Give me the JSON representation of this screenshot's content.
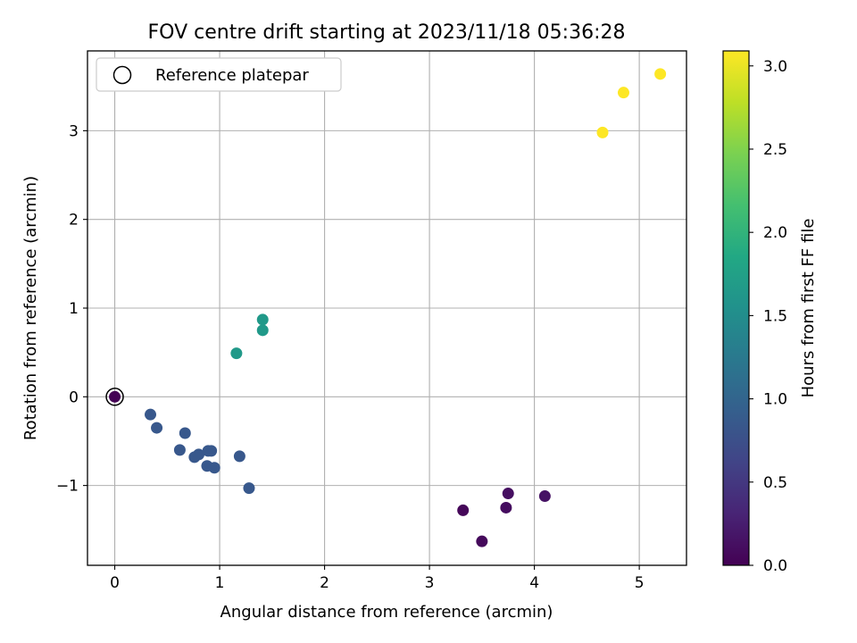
{
  "chart_data": {
    "type": "scatter",
    "title": "FOV centre drift starting at 2023/11/18 05:36:28",
    "xlabel": "Angular distance from reference (arcmin)",
    "ylabel": "Rotation from reference (arcmin)",
    "xlim": [
      -0.26,
      5.45
    ],
    "ylim": [
      -1.9,
      3.9
    ],
    "xticks": [
      0,
      1,
      2,
      3,
      4,
      5
    ],
    "yticks": [
      -1,
      0,
      1,
      2,
      3
    ],
    "grid": true,
    "legend": {
      "position": "top-left",
      "entries": [
        "Reference platepar"
      ]
    },
    "colorbar": {
      "label": "Hours from first FF file",
      "colormap": "viridis",
      "range": [
        0.0,
        3.09
      ],
      "ticks": [
        "0.0",
        "0.5",
        "1.0",
        "1.5",
        "2.0",
        "2.5",
        "3.0"
      ]
    },
    "reference_point": {
      "x": 0,
      "y": 0
    },
    "points": [
      {
        "x": 0.0,
        "y": 0.0,
        "hours": 0.0
      },
      {
        "x": 3.32,
        "y": -1.28,
        "hours": 0.05
      },
      {
        "x": 3.5,
        "y": -1.63,
        "hours": 0.07
      },
      {
        "x": 3.73,
        "y": -1.25,
        "hours": 0.1
      },
      {
        "x": 3.75,
        "y": -1.09,
        "hours": 0.12
      },
      {
        "x": 4.1,
        "y": -1.12,
        "hours": 0.15
      },
      {
        "x": 0.34,
        "y": -0.2,
        "hours": 0.85
      },
      {
        "x": 0.4,
        "y": -0.35,
        "hours": 0.85
      },
      {
        "x": 0.67,
        "y": -0.41,
        "hours": 0.85
      },
      {
        "x": 0.62,
        "y": -0.6,
        "hours": 0.85
      },
      {
        "x": 0.76,
        "y": -0.68,
        "hours": 0.85
      },
      {
        "x": 0.8,
        "y": -0.65,
        "hours": 0.85
      },
      {
        "x": 0.89,
        "y": -0.61,
        "hours": 0.85
      },
      {
        "x": 0.92,
        "y": -0.61,
        "hours": 0.85
      },
      {
        "x": 0.88,
        "y": -0.78,
        "hours": 0.85
      },
      {
        "x": 0.95,
        "y": -0.8,
        "hours": 0.85
      },
      {
        "x": 1.19,
        "y": -0.67,
        "hours": 0.85
      },
      {
        "x": 1.28,
        "y": -1.03,
        "hours": 0.85
      },
      {
        "x": 1.16,
        "y": 0.49,
        "hours": 1.65
      },
      {
        "x": 1.41,
        "y": 0.87,
        "hours": 1.65
      },
      {
        "x": 1.41,
        "y": 0.75,
        "hours": 1.65
      },
      {
        "x": 4.65,
        "y": 2.98,
        "hours": 3.09
      },
      {
        "x": 4.85,
        "y": 3.43,
        "hours": 3.09
      },
      {
        "x": 5.2,
        "y": 3.64,
        "hours": 3.09
      }
    ]
  }
}
